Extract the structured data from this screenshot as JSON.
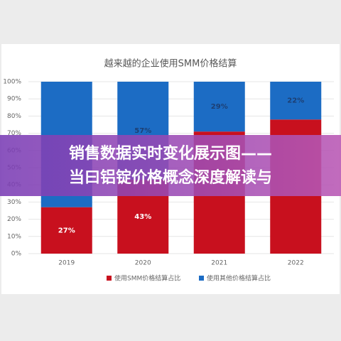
{
  "chart_data": {
    "type": "stacked_bar",
    "title": "越来越的企业使用SMM价格结算",
    "categories": [
      "2019",
      "2020",
      "2021",
      "2022"
    ],
    "series": [
      {
        "name": "使用SMM价格结算占比",
        "color": "#c8101e",
        "values": [
          27,
          43,
          71,
          78
        ],
        "value_labels": [
          "27%",
          "43%",
          null,
          null
        ]
      },
      {
        "name": "使用其他价格结算占比",
        "color": "#1c6cc4",
        "values": [
          73,
          57,
          29,
          22
        ],
        "value_labels": [
          null,
          "57%",
          "29%",
          "22%"
        ]
      }
    ],
    "ylim": [
      0,
      100
    ],
    "yticks": [
      {
        "value": 0,
        "label": "0%"
      },
      {
        "value": 10,
        "label": "10%"
      },
      {
        "value": 20,
        "label": "20%"
      },
      {
        "value": 30,
        "label": "30%"
      },
      {
        "value": 40,
        "label": "40%"
      },
      {
        "value": 50,
        "label": "50%"
      },
      {
        "value": 60,
        "label": "60%"
      },
      {
        "value": 70,
        "label": "70%"
      },
      {
        "value": 80,
        "label": "80%"
      },
      {
        "value": 90,
        "label": "90%"
      },
      {
        "value": 100,
        "label": "100%"
      }
    ],
    "legend": "bottom"
  },
  "banner": {
    "lines": [
      "销售数据实时变化展示图——",
      "当曰铝锭价格概念深度解读与"
    ]
  }
}
